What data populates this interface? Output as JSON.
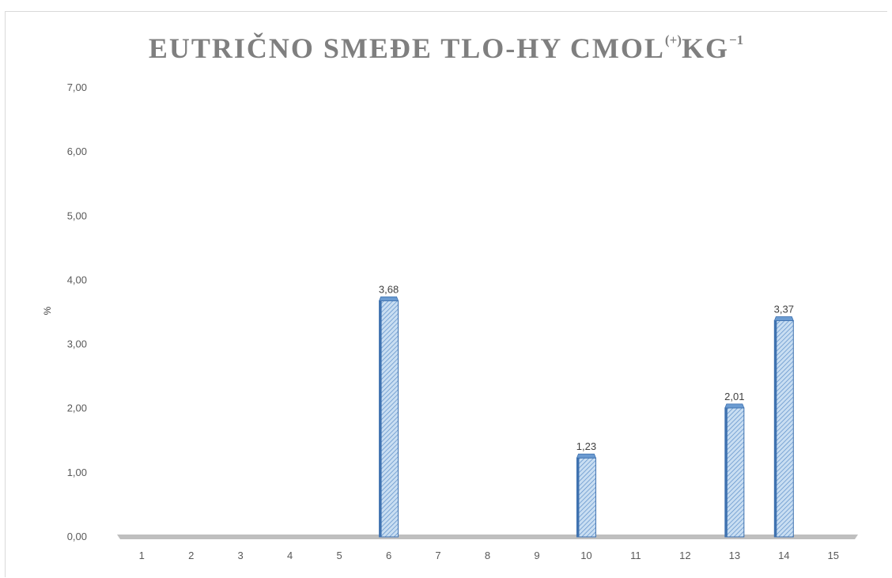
{
  "chart_data": {
    "type": "bar",
    "title_main": "EUTRIČNO SMEĐE TLO-HY CMOL",
    "title_sup1": "(+)",
    "title_mid": "KG",
    "title_sup2": "−1",
    "xlabel": "",
    "ylabel": "%",
    "ylim": [
      0,
      7
    ],
    "y_ticks": [
      "0,00",
      "1,00",
      "2,00",
      "3,00",
      "4,00",
      "5,00",
      "6,00",
      "7,00"
    ],
    "categories": [
      "1",
      "2",
      "3",
      "4",
      "5",
      "6",
      "7",
      "8",
      "9",
      "10",
      "11",
      "12",
      "13",
      "14",
      "15"
    ],
    "values": [
      null,
      null,
      null,
      null,
      null,
      3.68,
      null,
      null,
      null,
      1.23,
      null,
      null,
      2.01,
      3.37,
      null
    ],
    "data_labels": [
      "",
      "",
      "",
      "",
      "",
      "3,68",
      "",
      "",
      "",
      "1,23",
      "",
      "",
      "2,01",
      "3,37",
      ""
    ],
    "grid": false,
    "legend": "none",
    "colors": {
      "bar_fill": "#c9def2",
      "bar_hatch": "#5b8ec9",
      "bar_edge": "#3f72b0",
      "bar_cap": "#6b9bd1",
      "axis": "#bfbfbf"
    }
  }
}
